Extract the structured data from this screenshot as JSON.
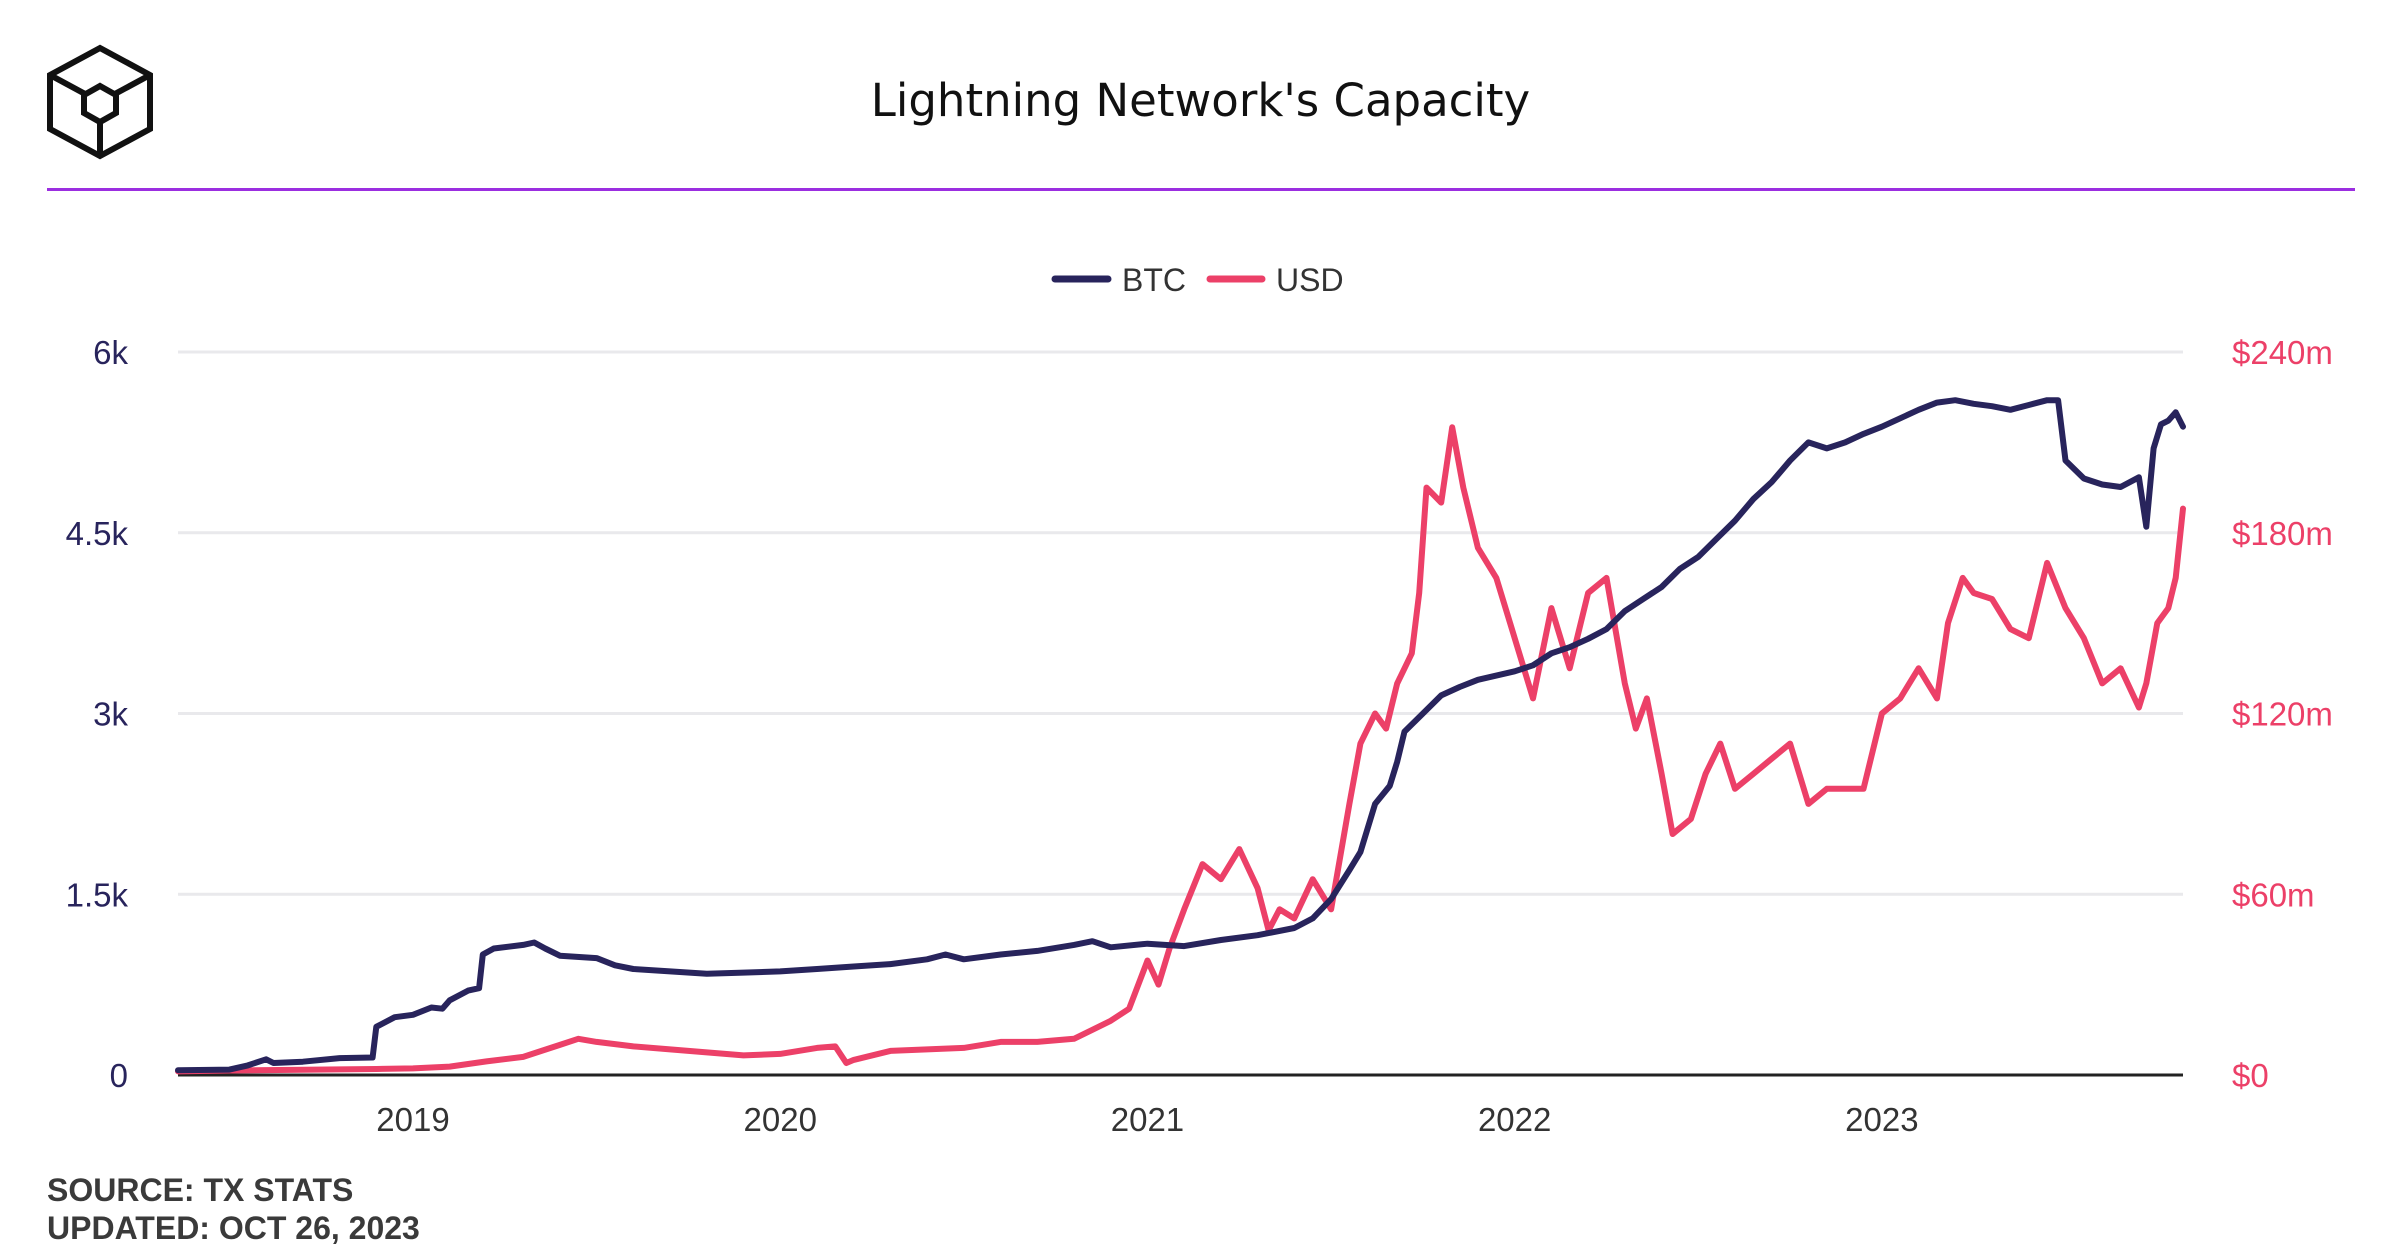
{
  "header": {
    "title": "Lightning Network's Capacity"
  },
  "footer": {
    "source": "SOURCE: TX STATS",
    "updated": "UPDATED: OCT 26, 2023"
  },
  "colors": {
    "btc": "#28245c",
    "usd": "#ec4068",
    "accent_rule": "#9b2ee0",
    "grid": "#e9e9ec"
  },
  "chart_data": {
    "type": "line",
    "title": "Lightning Network's Capacity",
    "legend": [
      "BTC",
      "USD"
    ],
    "legend_position": "top-center",
    "x_start": 2018.36,
    "x_end": 2023.82,
    "x_ticks": [
      {
        "value": 2019,
        "label": "2019"
      },
      {
        "value": 2020,
        "label": "2020"
      },
      {
        "value": 2021,
        "label": "2021"
      },
      {
        "value": 2022,
        "label": "2022"
      },
      {
        "value": 2023,
        "label": "2023"
      }
    ],
    "y_left": {
      "min": 0,
      "max": 6000,
      "ticks": [
        {
          "value": 0,
          "label": "0"
        },
        {
          "value": 1500,
          "label": "1.5k"
        },
        {
          "value": 3000,
          "label": "3k"
        },
        {
          "value": 4500,
          "label": "4.5k"
        },
        {
          "value": 6000,
          "label": "6k"
        }
      ]
    },
    "y_right": {
      "min": 0,
      "max": 240,
      "unit": "USD millions",
      "ticks": [
        {
          "value": 0,
          "label": "$0"
        },
        {
          "value": 60,
          "label": "$60m"
        },
        {
          "value": 120,
          "label": "$120m"
        },
        {
          "value": 180,
          "label": "$180m"
        },
        {
          "value": 240,
          "label": "$240m"
        }
      ]
    },
    "grid": true,
    "series": [
      {
        "name": "BTC",
        "axis": "left",
        "points": [
          [
            2018.36,
            40
          ],
          [
            2018.5,
            45
          ],
          [
            2018.55,
            80
          ],
          [
            2018.6,
            130
          ],
          [
            2018.62,
            100
          ],
          [
            2018.7,
            110
          ],
          [
            2018.8,
            140
          ],
          [
            2018.89,
            145
          ],
          [
            2018.9,
            400
          ],
          [
            2018.95,
            480
          ],
          [
            2019.0,
            500
          ],
          [
            2019.05,
            560
          ],
          [
            2019.08,
            550
          ],
          [
            2019.1,
            620
          ],
          [
            2019.15,
            700
          ],
          [
            2019.18,
            720
          ],
          [
            2019.19,
            1000
          ],
          [
            2019.22,
            1050
          ],
          [
            2019.3,
            1080
          ],
          [
            2019.33,
            1100
          ],
          [
            2019.36,
            1050
          ],
          [
            2019.4,
            990
          ],
          [
            2019.5,
            970
          ],
          [
            2019.55,
            910
          ],
          [
            2019.6,
            880
          ],
          [
            2019.7,
            860
          ],
          [
            2019.8,
            840
          ],
          [
            2019.9,
            850
          ],
          [
            2020.0,
            860
          ],
          [
            2020.1,
            880
          ],
          [
            2020.2,
            900
          ],
          [
            2020.3,
            920
          ],
          [
            2020.4,
            960
          ],
          [
            2020.45,
            1000
          ],
          [
            2020.5,
            960
          ],
          [
            2020.6,
            1000
          ],
          [
            2020.7,
            1030
          ],
          [
            2020.8,
            1080
          ],
          [
            2020.85,
            1110
          ],
          [
            2020.9,
            1060
          ],
          [
            2021.0,
            1090
          ],
          [
            2021.1,
            1070
          ],
          [
            2021.2,
            1120
          ],
          [
            2021.3,
            1160
          ],
          [
            2021.4,
            1220
          ],
          [
            2021.45,
            1300
          ],
          [
            2021.5,
            1460
          ],
          [
            2021.55,
            1700
          ],
          [
            2021.58,
            1850
          ],
          [
            2021.62,
            2250
          ],
          [
            2021.66,
            2400
          ],
          [
            2021.68,
            2600
          ],
          [
            2021.7,
            2850
          ],
          [
            2021.75,
            3000
          ],
          [
            2021.8,
            3150
          ],
          [
            2021.85,
            3220
          ],
          [
            2021.9,
            3280
          ],
          [
            2022.0,
            3350
          ],
          [
            2022.05,
            3400
          ],
          [
            2022.1,
            3500
          ],
          [
            2022.15,
            3550
          ],
          [
            2022.2,
            3620
          ],
          [
            2022.25,
            3700
          ],
          [
            2022.3,
            3850
          ],
          [
            2022.35,
            3950
          ],
          [
            2022.4,
            4050
          ],
          [
            2022.45,
            4200
          ],
          [
            2022.5,
            4300
          ],
          [
            2022.55,
            4450
          ],
          [
            2022.6,
            4600
          ],
          [
            2022.65,
            4780
          ],
          [
            2022.7,
            4920
          ],
          [
            2022.75,
            5100
          ],
          [
            2022.8,
            5250
          ],
          [
            2022.85,
            5200
          ],
          [
            2022.9,
            5250
          ],
          [
            2022.95,
            5320
          ],
          [
            2023.0,
            5380
          ],
          [
            2023.05,
            5450
          ],
          [
            2023.1,
            5520
          ],
          [
            2023.15,
            5580
          ],
          [
            2023.2,
            5600
          ],
          [
            2023.25,
            5570
          ],
          [
            2023.3,
            5550
          ],
          [
            2023.35,
            5520
          ],
          [
            2023.4,
            5560
          ],
          [
            2023.45,
            5600
          ],
          [
            2023.48,
            5600
          ],
          [
            2023.5,
            5100
          ],
          [
            2023.55,
            4950
          ],
          [
            2023.6,
            4900
          ],
          [
            2023.65,
            4880
          ],
          [
            2023.7,
            4960
          ],
          [
            2023.72,
            4550
          ],
          [
            2023.74,
            5200
          ],
          [
            2023.76,
            5400
          ],
          [
            2023.78,
            5430
          ],
          [
            2023.8,
            5500
          ],
          [
            2023.82,
            5380
          ]
        ]
      },
      {
        "name": "USD",
        "axis": "right",
        "points": [
          [
            2018.36,
            1.2
          ],
          [
            2018.5,
            1.5
          ],
          [
            2018.9,
            2
          ],
          [
            2019.0,
            2.2
          ],
          [
            2019.1,
            2.8
          ],
          [
            2019.2,
            4.5
          ],
          [
            2019.3,
            6
          ],
          [
            2019.35,
            8
          ],
          [
            2019.4,
            10
          ],
          [
            2019.45,
            12
          ],
          [
            2019.5,
            11
          ],
          [
            2019.6,
            9.5
          ],
          [
            2019.7,
            8.5
          ],
          [
            2019.8,
            7.5
          ],
          [
            2019.9,
            6.5
          ],
          [
            2020.0,
            7
          ],
          [
            2020.05,
            8
          ],
          [
            2020.1,
            9
          ],
          [
            2020.15,
            9.5
          ],
          [
            2020.18,
            4
          ],
          [
            2020.2,
            5
          ],
          [
            2020.3,
            8
          ],
          [
            2020.4,
            8.5
          ],
          [
            2020.5,
            9
          ],
          [
            2020.55,
            10
          ],
          [
            2020.6,
            11
          ],
          [
            2020.7,
            11
          ],
          [
            2020.8,
            12
          ],
          [
            2020.85,
            15
          ],
          [
            2020.9,
            18
          ],
          [
            2020.95,
            22
          ],
          [
            2021.0,
            38
          ],
          [
            2021.03,
            30
          ],
          [
            2021.06,
            42
          ],
          [
            2021.1,
            55
          ],
          [
            2021.15,
            70
          ],
          [
            2021.2,
            65
          ],
          [
            2021.25,
            75
          ],
          [
            2021.3,
            62
          ],
          [
            2021.33,
            48
          ],
          [
            2021.36,
            55
          ],
          [
            2021.4,
            52
          ],
          [
            2021.45,
            65
          ],
          [
            2021.5,
            55
          ],
          [
            2021.55,
            90
          ],
          [
            2021.58,
            110
          ],
          [
            2021.62,
            120
          ],
          [
            2021.65,
            115
          ],
          [
            2021.68,
            130
          ],
          [
            2021.72,
            140
          ],
          [
            2021.74,
            160
          ],
          [
            2021.76,
            195
          ],
          [
            2021.8,
            190
          ],
          [
            2021.83,
            215
          ],
          [
            2021.86,
            195
          ],
          [
            2021.9,
            175
          ],
          [
            2021.95,
            165
          ],
          [
            2022.0,
            145
          ],
          [
            2022.05,
            125
          ],
          [
            2022.1,
            155
          ],
          [
            2022.15,
            135
          ],
          [
            2022.2,
            160
          ],
          [
            2022.25,
            165
          ],
          [
            2022.3,
            130
          ],
          [
            2022.33,
            115
          ],
          [
            2022.36,
            125
          ],
          [
            2022.4,
            100
          ],
          [
            2022.43,
            80
          ],
          [
            2022.48,
            85
          ],
          [
            2022.52,
            100
          ],
          [
            2022.56,
            110
          ],
          [
            2022.6,
            95
          ],
          [
            2022.65,
            100
          ],
          [
            2022.7,
            105
          ],
          [
            2022.75,
            110
          ],
          [
            2022.8,
            90
          ],
          [
            2022.85,
            95
          ],
          [
            2022.9,
            95
          ],
          [
            2022.95,
            95
          ],
          [
            2023.0,
            120
          ],
          [
            2023.05,
            125
          ],
          [
            2023.1,
            135
          ],
          [
            2023.15,
            125
          ],
          [
            2023.18,
            150
          ],
          [
            2023.22,
            165
          ],
          [
            2023.25,
            160
          ],
          [
            2023.3,
            158
          ],
          [
            2023.35,
            148
          ],
          [
            2023.4,
            145
          ],
          [
            2023.45,
            170
          ],
          [
            2023.5,
            155
          ],
          [
            2023.55,
            145
          ],
          [
            2023.6,
            130
          ],
          [
            2023.65,
            135
          ],
          [
            2023.7,
            122
          ],
          [
            2023.72,
            130
          ],
          [
            2023.75,
            150
          ],
          [
            2023.78,
            155
          ],
          [
            2023.8,
            165
          ],
          [
            2023.82,
            188
          ]
        ]
      }
    ]
  }
}
